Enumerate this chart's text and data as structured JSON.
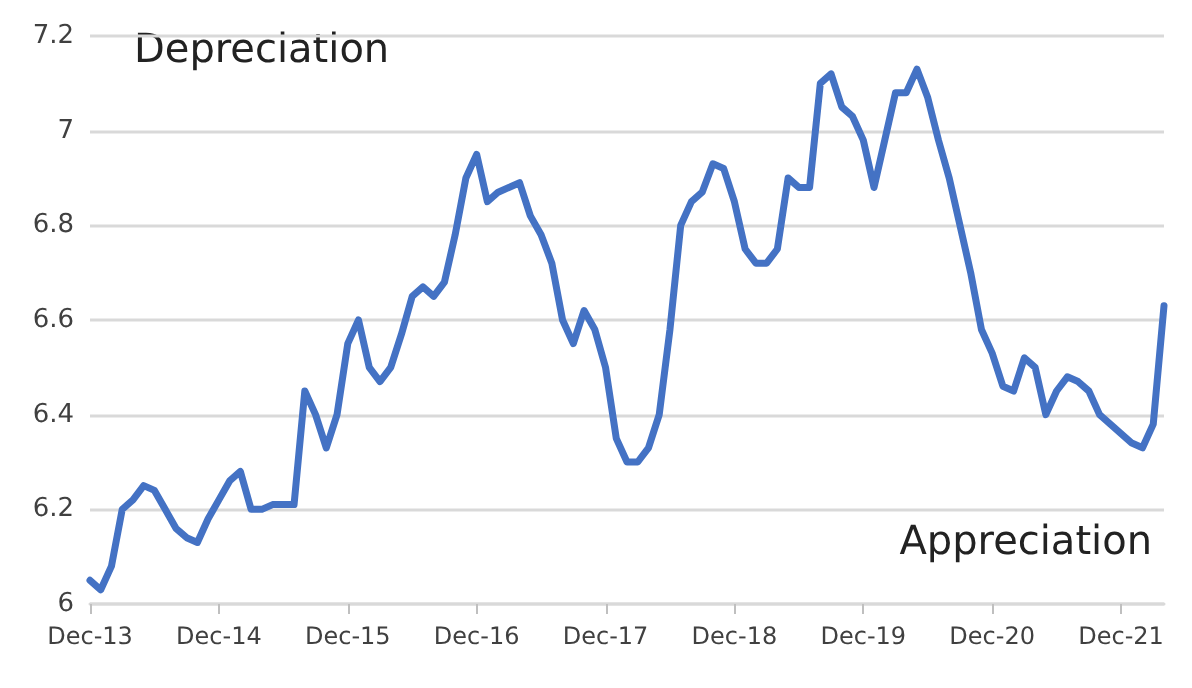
{
  "chart_data": {
    "type": "line",
    "categories": [
      "Dec-13",
      null,
      null,
      null,
      null,
      null,
      null,
      null,
      null,
      null,
      null,
      null,
      "Dec-14",
      null,
      null,
      null,
      null,
      null,
      null,
      null,
      null,
      null,
      null,
      null,
      "Dec-15",
      null,
      null,
      null,
      null,
      null,
      null,
      null,
      null,
      null,
      null,
      null,
      "Dec-16",
      null,
      null,
      null,
      null,
      null,
      null,
      null,
      null,
      null,
      null,
      null,
      "Dec-17",
      null,
      null,
      null,
      null,
      null,
      null,
      null,
      null,
      null,
      null,
      null,
      "Dec-18",
      null,
      null,
      null,
      null,
      null,
      null,
      null,
      null,
      null,
      null,
      null,
      "Dec-19",
      null,
      null,
      null,
      null,
      null,
      null,
      null,
      null,
      null,
      null,
      null,
      "Dec-20",
      null,
      null,
      null,
      null,
      null,
      null,
      null,
      null,
      null,
      null,
      null,
      "Dec-21",
      null,
      null,
      null,
      null
    ],
    "series": [
      {
        "color": "#4472c4",
        "values": [
          6.05,
          6.03,
          6.08,
          6.2,
          6.22,
          6.25,
          6.24,
          6.2,
          6.16,
          6.14,
          6.13,
          6.18,
          6.22,
          6.26,
          6.28,
          6.2,
          6.2,
          6.21,
          6.21,
          6.21,
          6.45,
          6.4,
          6.33,
          6.4,
          6.55,
          6.6,
          6.5,
          6.47,
          6.5,
          6.57,
          6.65,
          6.67,
          6.65,
          6.68,
          6.78,
          6.9,
          6.95,
          6.85,
          6.87,
          6.88,
          6.89,
          6.82,
          6.78,
          6.72,
          6.6,
          6.55,
          6.62,
          6.58,
          6.5,
          6.35,
          6.3,
          6.3,
          6.33,
          6.4,
          6.58,
          6.8,
          6.85,
          6.87,
          6.93,
          6.92,
          6.85,
          6.75,
          6.72,
          6.72,
          6.75,
          6.9,
          6.88,
          6.88,
          7.1,
          7.12,
          7.05,
          7.03,
          6.98,
          6.88,
          6.98,
          7.08,
          7.08,
          7.13,
          7.07,
          6.98,
          6.9,
          6.8,
          6.7,
          6.58,
          6.53,
          6.46,
          6.45,
          6.52,
          6.5,
          6.4,
          6.45,
          6.48,
          6.47,
          6.45,
          6.4,
          6.38,
          6.36,
          6.34,
          6.33,
          6.38,
          6.63
        ]
      }
    ],
    "ylim": [
      6,
      7.2
    ],
    "yticks": [
      6,
      6.2,
      6.4,
      6.6,
      6.8,
      7,
      7.2
    ],
    "grid": "y",
    "marker": "none",
    "line_style": "solid",
    "annotations": [
      "Depreciation",
      "Appreciation"
    ]
  }
}
